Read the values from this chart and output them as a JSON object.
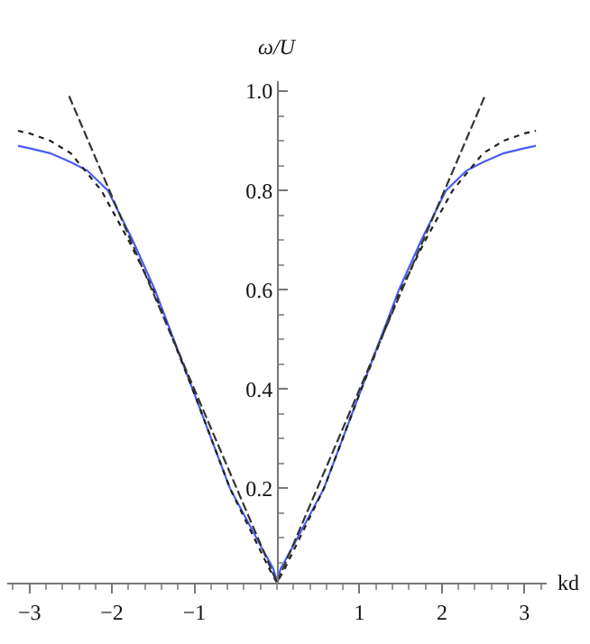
{
  "chart_data": {
    "type": "line",
    "xlabel": "kd",
    "ylabel": "ω/U",
    "xlim": [
      -3.27,
      3.27
    ],
    "ylim": [
      0.01,
      1.02
    ],
    "xticks": [
      {
        "value": -3,
        "label": "−3"
      },
      {
        "value": -2,
        "label": "−2"
      },
      {
        "value": -1,
        "label": "−1"
      },
      1,
      2,
      3
    ],
    "yticks": [
      0.2,
      0.4,
      0.6,
      0.8,
      {
        "value": 1,
        "label": "1.0"
      }
    ],
    "series": [
      {
        "color": "#4a5cf5",
        "line_style": "solid",
        "x": [
          -3.14,
          -3.0,
          -2.75,
          -2.5,
          -2.3,
          -2.05,
          -1.75,
          -1.48,
          -1.0,
          -0.57,
          -0.2,
          -0.1,
          -0.05,
          0,
          0.05,
          0.1,
          0.2,
          0.57,
          1.0,
          1.48,
          1.75,
          2.05,
          2.3,
          2.5,
          2.75,
          3.0,
          3.14
        ],
        "values": [
          0.89,
          0.885,
          0.875,
          0.857,
          0.84,
          0.8,
          0.7,
          0.6,
          0.39,
          0.2,
          0.085,
          0.055,
          0.04,
          0.015,
          0.04,
          0.055,
          0.085,
          0.2,
          0.39,
          0.6,
          0.7,
          0.8,
          0.84,
          0.857,
          0.875,
          0.885,
          0.89
        ]
      },
      {
        "color": "#222222",
        "line_style": "dotted",
        "x": [
          -3.14,
          -3.0,
          -2.75,
          -2.5,
          -2.13,
          -1.8,
          -1.5,
          -1.0,
          -0.57,
          -0.1,
          0,
          0.1,
          0.57,
          1.0,
          1.5,
          1.8,
          2.13,
          2.5,
          2.75,
          3.0,
          3.14
        ],
        "values": [
          0.92,
          0.915,
          0.9,
          0.875,
          0.8,
          0.7,
          0.6,
          0.39,
          0.2,
          0.04,
          0.01,
          0.04,
          0.2,
          0.39,
          0.6,
          0.7,
          0.8,
          0.875,
          0.9,
          0.915,
          0.92
        ]
      },
      {
        "color": "#333333",
        "line_style": "dashed",
        "x": [
          -2.52,
          0,
          2.52
        ],
        "values": [
          0.99,
          0.01,
          0.99
        ]
      }
    ]
  }
}
